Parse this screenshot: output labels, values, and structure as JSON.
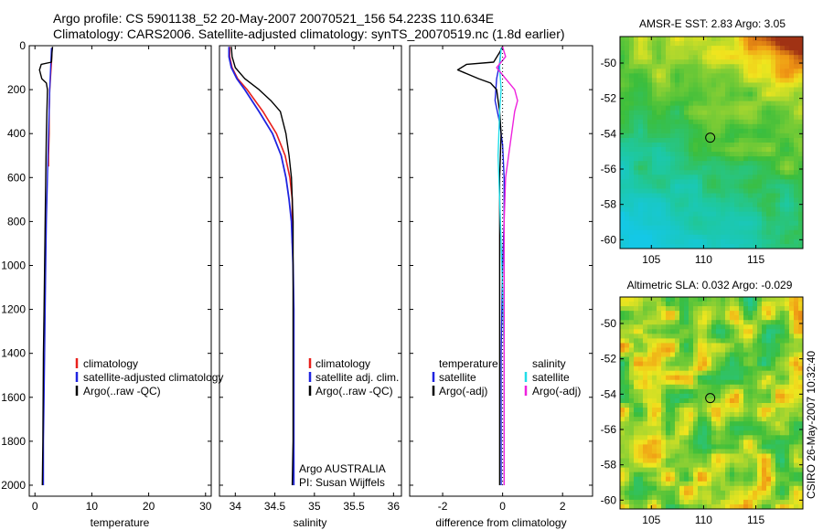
{
  "header": {
    "line1": "Argo profile: CS 5901138_52 20-May-2007 20070521_156 54.223S 110.634E",
    "line2": "Climatology: CARS2006. Satellite-adjusted climatology: synTS_20070519.nc (1.8d earlier)"
  },
  "side_label": "CSIRO 26-May-2007 10:32:40",
  "colors": {
    "climatology": "#e8201c",
    "satellite": "#1f24e0",
    "argo": "#000000",
    "sal_satellite": "#22dde8",
    "sal_argo": "#ee22dd"
  },
  "chart_data": [
    {
      "type": "line",
      "id": "temperature",
      "xlabel": "temperature",
      "xlim": [
        -1,
        31
      ],
      "ylim": [
        2050,
        0
      ],
      "xticks": [
        0,
        10,
        20,
        30
      ],
      "xtick_labels": [
        "0",
        "10",
        "20",
        "30"
      ],
      "yticks": [
        0,
        200,
        400,
        600,
        800,
        1000,
        1200,
        1400,
        1600,
        1800,
        2000
      ],
      "ytick_labels": [
        "0",
        "200",
        "400",
        "600",
        "800",
        "1000",
        "1200",
        "1400",
        "1600",
        "1800",
        "2000"
      ],
      "legend": [
        "climatology",
        "satellite-adjusted climatology",
        "Argo(..raw -QC)"
      ],
      "series": [
        {
          "name": "climatology",
          "color": "#e8201c",
          "width": 1.4,
          "x": [
            3.0,
            2.9,
            2.6,
            2.5,
            2.5,
            2.4,
            2.4
          ],
          "y": [
            10,
            80,
            200,
            300,
            400,
            500,
            550
          ]
        },
        {
          "name": "satellite-adjusted climatology",
          "color": "#1f24e0",
          "width": 1.4,
          "x": [
            2.9,
            2.8,
            2.6,
            2.4,
            2.2,
            2.0,
            1.9,
            1.8,
            1.7,
            1.6,
            1.5,
            1.5
          ],
          "y": [
            10,
            80,
            200,
            400,
            600,
            800,
            1000,
            1200,
            1400,
            1600,
            1800,
            2000
          ]
        },
        {
          "name": "Argo(..raw -QC)",
          "color": "#000000",
          "width": 1.4,
          "x": [
            3.1,
            3.0,
            2.9,
            1.1,
            0.8,
            1.2,
            2.0,
            2.2,
            2.0,
            1.9,
            1.8,
            1.7,
            1.6,
            1.5,
            1.4,
            1.3
          ],
          "y": [
            5,
            30,
            75,
            85,
            110,
            150,
            170,
            200,
            400,
            600,
            800,
            1000,
            1200,
            1400,
            1800,
            2000
          ]
        }
      ]
    },
    {
      "type": "line",
      "id": "salinity",
      "xlabel": "salinity",
      "xlim": [
        33.8,
        36.1
      ],
      "ylim": [
        2050,
        0
      ],
      "xticks": [
        34,
        34.5,
        35,
        35.5,
        36
      ],
      "xtick_labels": [
        "34",
        "34.5",
        "35",
        "35.5",
        "36"
      ],
      "legend": [
        "climatology",
        "satellite adj. clim.",
        "Argo(..raw -QC)"
      ],
      "annotation": [
        "Argo AUSTRALIA",
        "PI: Susan Wijffels"
      ],
      "series": [
        {
          "name": "climatology",
          "color": "#e8201c",
          "width": 1.6,
          "x": [
            33.93,
            33.93,
            33.96,
            34.03,
            34.15,
            34.35,
            34.52,
            34.63,
            34.69,
            34.72,
            34.72,
            34.72
          ],
          "y": [
            5,
            50,
            100,
            150,
            200,
            300,
            400,
            500,
            600,
            700,
            800,
            900
          ]
        },
        {
          "name": "satellite adj. clim.",
          "color": "#1f24e0",
          "width": 1.8,
          "x": [
            33.92,
            33.92,
            33.95,
            34.02,
            34.12,
            34.3,
            34.47,
            34.58,
            34.64,
            34.68,
            34.71,
            34.73,
            34.74,
            34.74,
            34.74,
            34.74
          ],
          "y": [
            5,
            50,
            100,
            150,
            200,
            300,
            400,
            500,
            600,
            700,
            800,
            1000,
            1200,
            1500,
            1800,
            2000
          ]
        },
        {
          "name": "Argo(..raw -QC)",
          "color": "#000000",
          "width": 1.4,
          "x": [
            33.95,
            33.96,
            34.0,
            34.12,
            34.3,
            34.45,
            34.57,
            34.64,
            34.68,
            34.71,
            34.72,
            34.73,
            34.73,
            34.73,
            34.73,
            34.73,
            34.72
          ],
          "y": [
            5,
            50,
            100,
            150,
            200,
            250,
            300,
            400,
            500,
            600,
            700,
            800,
            1000,
            1200,
            1500,
            1800,
            2000
          ]
        }
      ]
    },
    {
      "type": "line",
      "id": "difference",
      "xlabel": "difference from climatology",
      "xlim": [
        -3.1,
        3.0
      ],
      "ylim": [
        2050,
        0
      ],
      "xticks": [
        -2,
        0,
        2
      ],
      "xtick_labels": [
        "-2",
        "0",
        "2"
      ],
      "legend_temperature": {
        "title": "temperature",
        "items": [
          "satellite",
          "Argo(-adj)"
        ]
      },
      "legend_salinity": {
        "title": "salinity",
        "items": [
          "satellite",
          "Argo(-adj)"
        ]
      },
      "series": [
        {
          "name": "temperature satellite",
          "color": "#1f24e0",
          "width": 1.4,
          "x": [
            -0.05,
            -0.1,
            -0.2,
            -0.25,
            -0.1,
            0.0,
            0.05,
            0.05,
            0.0,
            -0.05,
            -0.05,
            -0.05
          ],
          "y": [
            10,
            80,
            150,
            250,
            350,
            450,
            600,
            800,
            1000,
            1400,
            1800,
            2000
          ]
        },
        {
          "name": "temperature Argo(-adj)",
          "color": "#000000",
          "width": 1.4,
          "x": [
            0.0,
            -0.1,
            -0.3,
            -1.2,
            -1.5,
            -0.8,
            -0.4,
            -0.2,
            -0.1,
            -0.05,
            -0.1,
            -0.1,
            -0.1,
            -0.1,
            -0.1,
            -0.1
          ],
          "y": [
            5,
            30,
            75,
            85,
            110,
            150,
            170,
            200,
            300,
            400,
            600,
            800,
            1000,
            1400,
            1800,
            2000
          ]
        },
        {
          "name": "salinity satellite",
          "color": "#22dde8",
          "width": 1.4,
          "x": [
            -0.05,
            -0.1,
            -0.05,
            -0.1,
            -0.15,
            -0.1,
            -0.05,
            0.0,
            0.05,
            0.05,
            0.05
          ],
          "y": [
            10,
            100,
            200,
            300,
            500,
            700,
            900,
            1100,
            1400,
            1800,
            2000
          ]
        },
        {
          "name": "salinity Argo(-adj)",
          "color": "#ee22dd",
          "width": 1.4,
          "x": [
            0.0,
            0.1,
            -0.2,
            0.1,
            0.4,
            0.5,
            0.4,
            0.3,
            0.2,
            0.1,
            0.05,
            0.05,
            0.05
          ],
          "y": [
            5,
            50,
            100,
            150,
            200,
            250,
            300,
            400,
            500,
            600,
            800,
            1400,
            2000
          ]
        },
        {
          "name": "zero line",
          "color": "#000000",
          "width": 1.0,
          "dotted": true,
          "x": [
            0,
            0
          ],
          "y": [
            0,
            2000
          ]
        }
      ]
    },
    {
      "type": "heatmap",
      "id": "sst_map",
      "title": "AMSR-E SST: 2.83 Argo: 3.05",
      "xlim": [
        102,
        119.5
      ],
      "ylim": [
        -60.5,
        -48.5
      ],
      "xticks": [
        105,
        110,
        115
      ],
      "xtick_labels": [
        "105",
        "110",
        "115"
      ],
      "yticks": [
        -50,
        -52,
        -54,
        -56,
        -58,
        -60
      ],
      "ytick_labels": [
        "-50",
        "-52",
        "-54",
        "-56",
        "-58",
        "-60"
      ],
      "marker": {
        "lon": 110.634,
        "lat": -54.223
      }
    },
    {
      "type": "heatmap",
      "id": "sla_map",
      "title": "Altimetric SLA: 0.032 Argo: -0.029",
      "xlim": [
        102,
        119.5
      ],
      "ylim": [
        -60.5,
        -48.5
      ],
      "xticks": [
        105,
        110,
        115
      ],
      "xtick_labels": [
        "105",
        "110",
        "115"
      ],
      "yticks": [
        -50,
        -52,
        -54,
        -56,
        -58,
        -60
      ],
      "ytick_labels": [
        "-50",
        "-52",
        "-54",
        "-56",
        "-58",
        "-60"
      ],
      "marker": {
        "lon": 110.634,
        "lat": -54.223
      }
    }
  ]
}
